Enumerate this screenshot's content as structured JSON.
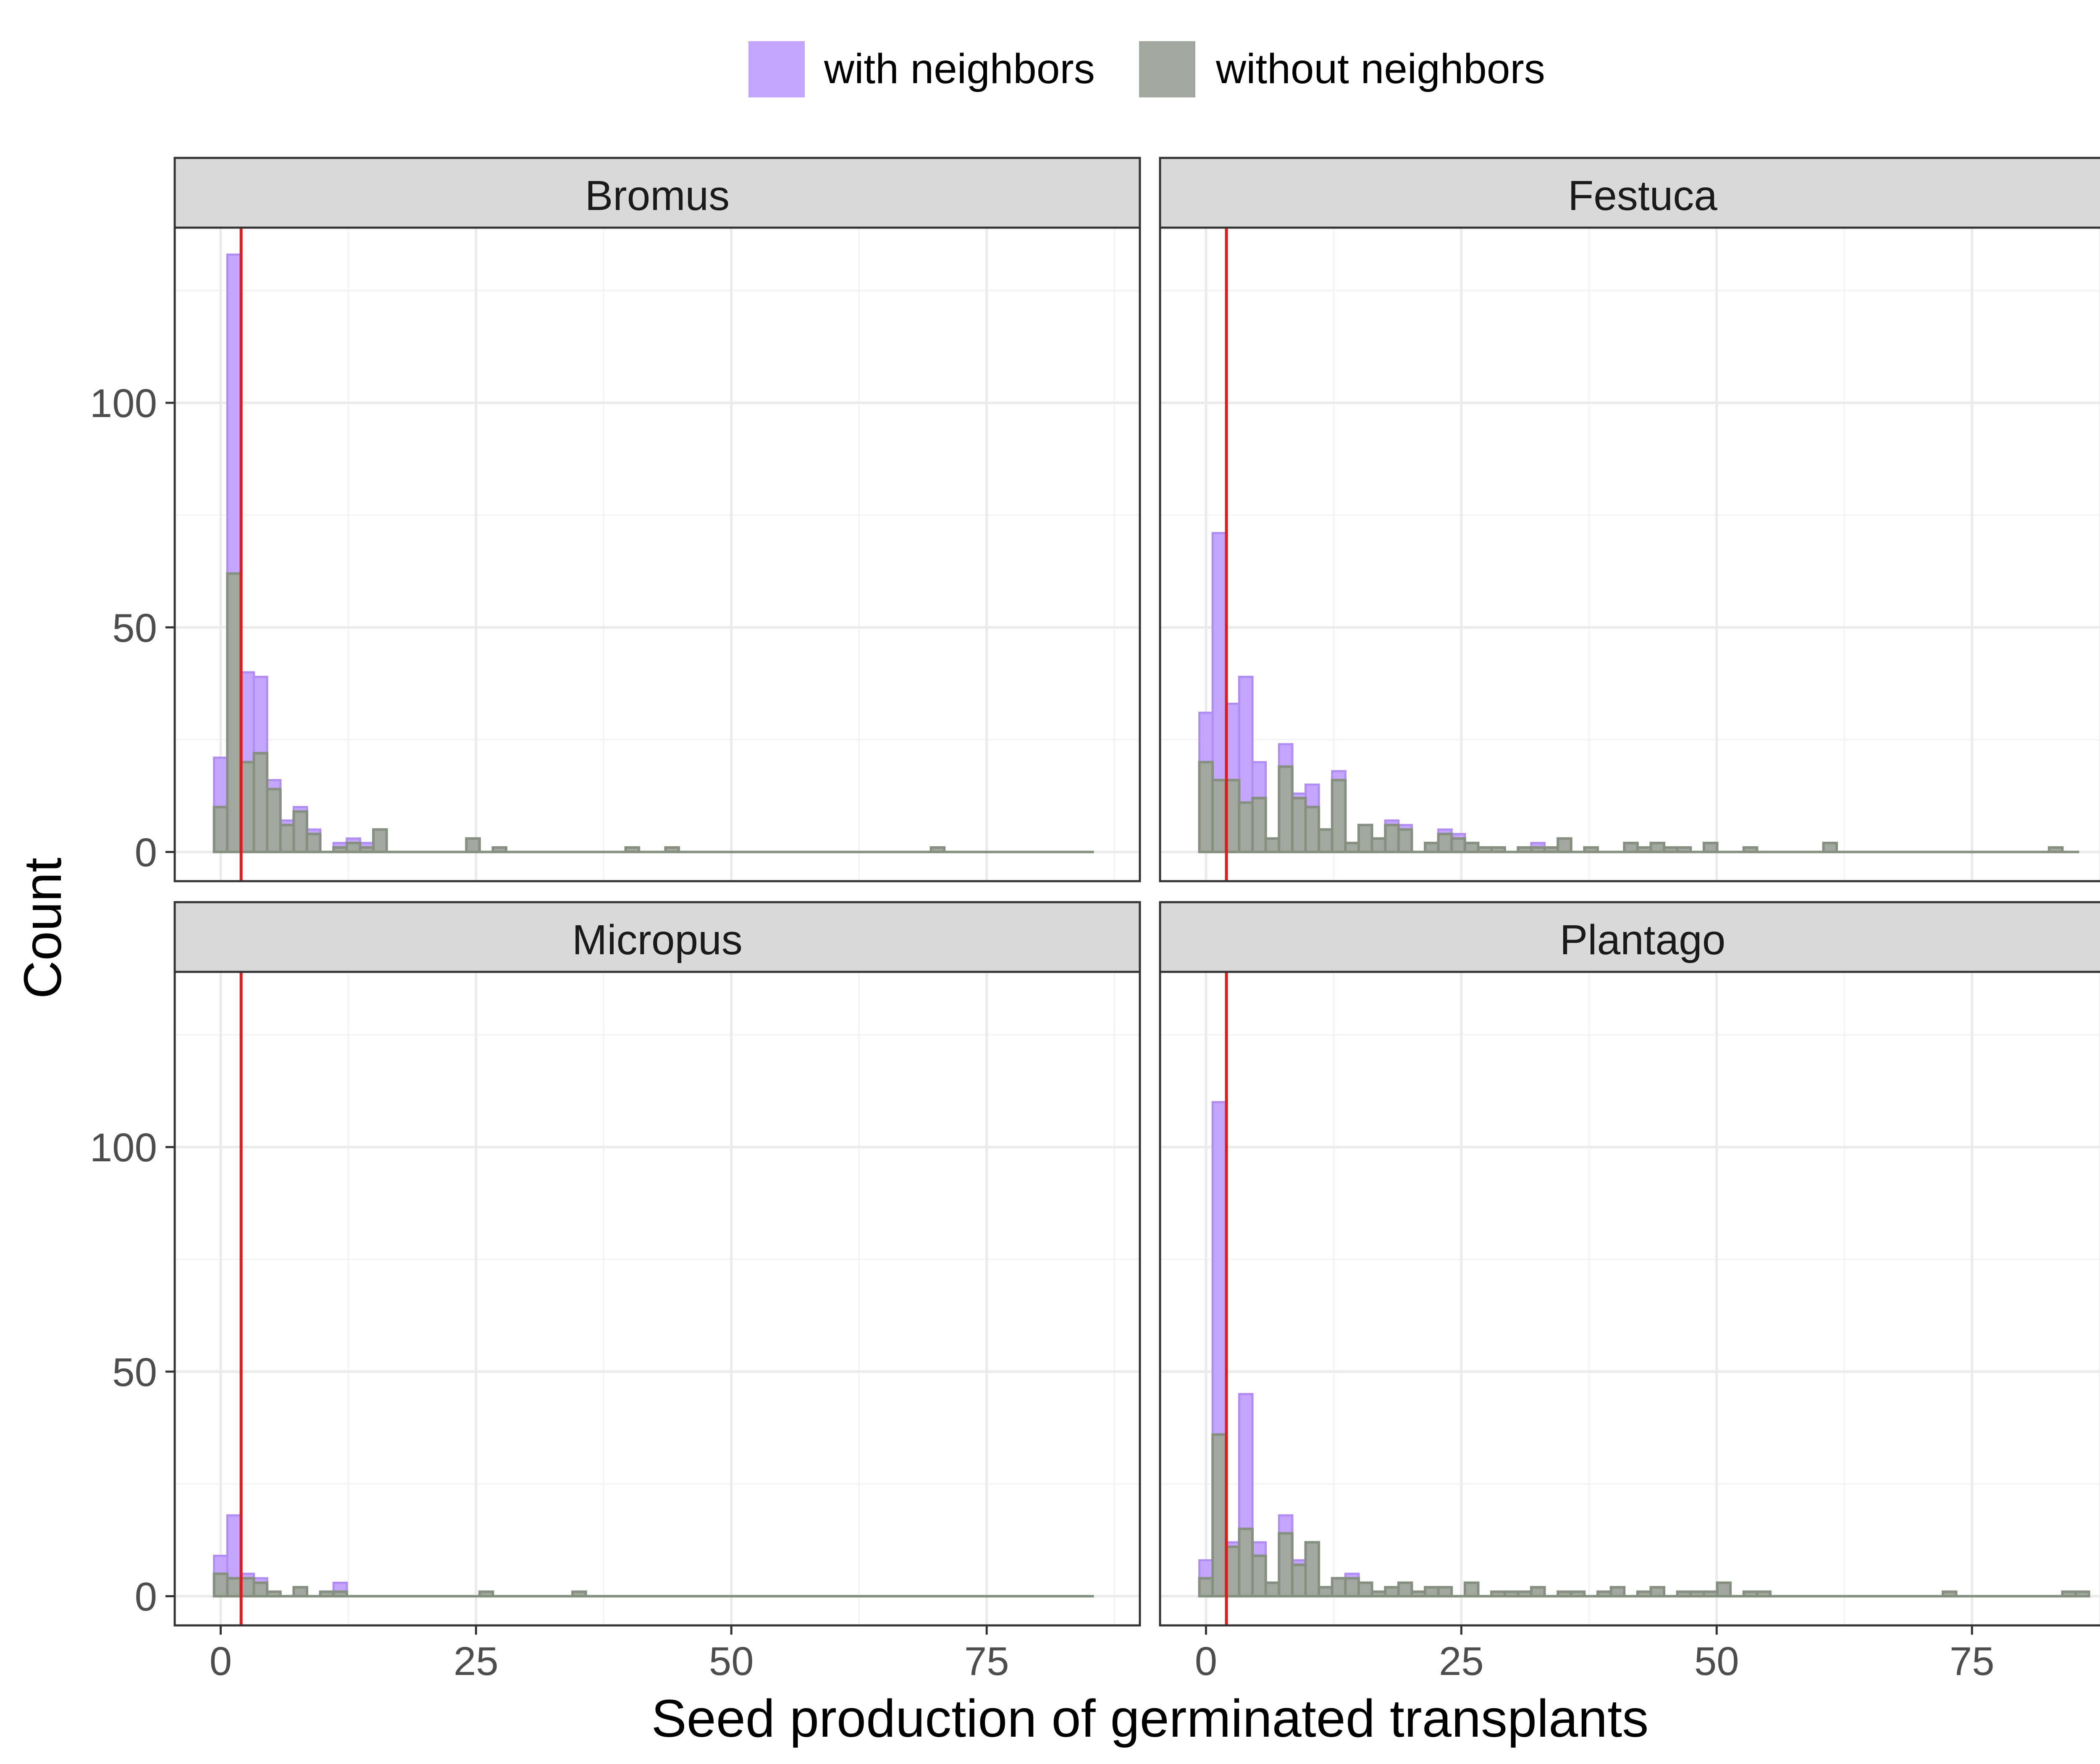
{
  "chart_data": {
    "type": "histogram",
    "facets": [
      "Bromus",
      "Festuca",
      "Micropus",
      "Plantago"
    ],
    "xlabel": "Seed production of germinated transplants",
    "ylabel": "Count",
    "xlim": [
      -4.5,
      90
    ],
    "ylim": [
      -6.5,
      139
    ],
    "x_ticks": [
      0,
      25,
      50,
      75
    ],
    "y_ticks": [
      0,
      50,
      100
    ],
    "bin_width": 1.3,
    "bin_start": -0.65,
    "x_max": 85.5,
    "reference_line_x": 2,
    "grid": true,
    "legend_position": "top",
    "series": [
      {
        "name": "with neighbors",
        "color": "#C4A6FF"
      },
      {
        "name": "without neighbors",
        "color": "#A2A79F"
      }
    ],
    "colors": {
      "reference_line": "#E31A1C",
      "bar_outline": "#869080",
      "strip_fill": "#D9D9D9",
      "grid": "#EBEBEB"
    },
    "panels": [
      {
        "facet": "Bromus",
        "with_neighbors": [
          [
            0,
            21
          ],
          [
            1,
            133
          ],
          [
            2,
            40
          ],
          [
            3,
            39
          ],
          [
            4,
            16
          ],
          [
            5,
            7
          ],
          [
            6,
            10
          ],
          [
            7,
            5
          ],
          [
            9,
            2
          ],
          [
            10,
            3
          ],
          [
            11,
            2
          ],
          [
            12,
            5
          ],
          [
            19,
            3
          ],
          [
            21,
            1
          ],
          [
            31,
            1
          ],
          [
            34,
            1
          ],
          [
            54,
            1
          ]
        ],
        "without_neighbors": [
          [
            0,
            10
          ],
          [
            1,
            62
          ],
          [
            2,
            20
          ],
          [
            3,
            22
          ],
          [
            4,
            14
          ],
          [
            5,
            6
          ],
          [
            6,
            9
          ],
          [
            7,
            4
          ],
          [
            9,
            1
          ],
          [
            10,
            2
          ],
          [
            11,
            1
          ],
          [
            12,
            5
          ],
          [
            19,
            3
          ],
          [
            21,
            1
          ],
          [
            31,
            1
          ],
          [
            34,
            1
          ],
          [
            54,
            1
          ]
        ]
      },
      {
        "facet": "Festuca",
        "with_neighbors": [
          [
            0,
            31
          ],
          [
            1,
            71
          ],
          [
            2,
            33
          ],
          [
            3,
            39
          ],
          [
            4,
            20
          ],
          [
            5,
            3
          ],
          [
            6,
            24
          ],
          [
            7,
            13
          ],
          [
            8,
            15
          ],
          [
            9,
            5
          ],
          [
            10,
            18
          ],
          [
            11,
            2
          ],
          [
            12,
            6
          ],
          [
            13,
            3
          ],
          [
            14,
            7
          ],
          [
            15,
            6
          ],
          [
            17,
            2
          ],
          [
            18,
            5
          ],
          [
            19,
            4
          ],
          [
            20,
            2
          ],
          [
            21,
            1
          ],
          [
            22,
            1
          ],
          [
            24,
            1
          ],
          [
            25,
            2
          ],
          [
            26,
            1
          ],
          [
            27,
            3
          ],
          [
            29,
            1
          ],
          [
            32,
            2
          ],
          [
            33,
            1
          ],
          [
            34,
            2
          ],
          [
            35,
            1
          ],
          [
            36,
            1
          ],
          [
            38,
            2
          ],
          [
            41,
            1
          ],
          [
            47,
            2
          ],
          [
            64,
            1
          ]
        ],
        "without_neighbors": [
          [
            0,
            20
          ],
          [
            1,
            16
          ],
          [
            2,
            16
          ],
          [
            3,
            11
          ],
          [
            4,
            12
          ],
          [
            5,
            3
          ],
          [
            6,
            19
          ],
          [
            7,
            12
          ],
          [
            8,
            10
          ],
          [
            9,
            5
          ],
          [
            10,
            16
          ],
          [
            11,
            2
          ],
          [
            12,
            6
          ],
          [
            13,
            3
          ],
          [
            14,
            6
          ],
          [
            15,
            5
          ],
          [
            17,
            2
          ],
          [
            18,
            4
          ],
          [
            19,
            3
          ],
          [
            20,
            2
          ],
          [
            21,
            1
          ],
          [
            22,
            1
          ],
          [
            24,
            1
          ],
          [
            25,
            1
          ],
          [
            26,
            1
          ],
          [
            27,
            3
          ],
          [
            29,
            1
          ],
          [
            32,
            2
          ],
          [
            33,
            1
          ],
          [
            34,
            2
          ],
          [
            35,
            1
          ],
          [
            36,
            1
          ],
          [
            38,
            2
          ],
          [
            41,
            1
          ],
          [
            47,
            2
          ],
          [
            64,
            1
          ]
        ]
      },
      {
        "facet": "Micropus",
        "with_neighbors": [
          [
            0,
            9
          ],
          [
            1,
            18
          ],
          [
            2,
            5
          ],
          [
            3,
            4
          ],
          [
            4,
            1
          ],
          [
            6,
            2
          ],
          [
            8,
            1
          ],
          [
            9,
            3
          ],
          [
            20,
            1
          ],
          [
            27,
            1
          ]
        ],
        "without_neighbors": [
          [
            0,
            5
          ],
          [
            1,
            4
          ],
          [
            2,
            4
          ],
          [
            3,
            3
          ],
          [
            4,
            1
          ],
          [
            6,
            2
          ],
          [
            8,
            1
          ],
          [
            9,
            1
          ],
          [
            20,
            1
          ],
          [
            27,
            1
          ]
        ]
      },
      {
        "facet": "Plantago",
        "with_neighbors": [
          [
            0,
            8
          ],
          [
            1,
            110
          ],
          [
            2,
            12
          ],
          [
            3,
            45
          ],
          [
            4,
            12
          ],
          [
            5,
            3
          ],
          [
            6,
            18
          ],
          [
            7,
            8
          ],
          [
            8,
            12
          ],
          [
            9,
            2
          ],
          [
            10,
            4
          ],
          [
            11,
            5
          ],
          [
            12,
            3
          ],
          [
            13,
            1
          ],
          [
            14,
            2
          ],
          [
            15,
            3
          ],
          [
            16,
            1
          ],
          [
            17,
            2
          ],
          [
            18,
            2
          ],
          [
            20,
            3
          ],
          [
            22,
            1
          ],
          [
            23,
            1
          ],
          [
            24,
            1
          ],
          [
            25,
            2
          ],
          [
            27,
            1
          ],
          [
            28,
            1
          ],
          [
            30,
            1
          ],
          [
            31,
            2
          ],
          [
            33,
            1
          ],
          [
            34,
            2
          ],
          [
            36,
            1
          ],
          [
            37,
            1
          ],
          [
            38,
            1
          ],
          [
            39,
            3
          ],
          [
            41,
            1
          ],
          [
            42,
            1
          ],
          [
            56,
            1
          ],
          [
            65,
            1
          ],
          [
            66,
            1
          ]
        ],
        "without_neighbors": [
          [
            0,
            4
          ],
          [
            1,
            36
          ],
          [
            2,
            11
          ],
          [
            3,
            15
          ],
          [
            4,
            9
          ],
          [
            5,
            3
          ],
          [
            6,
            14
          ],
          [
            7,
            7
          ],
          [
            8,
            12
          ],
          [
            9,
            2
          ],
          [
            10,
            4
          ],
          [
            11,
            4
          ],
          [
            12,
            3
          ],
          [
            13,
            1
          ],
          [
            14,
            2
          ],
          [
            15,
            3
          ],
          [
            16,
            1
          ],
          [
            17,
            2
          ],
          [
            18,
            2
          ],
          [
            20,
            3
          ],
          [
            22,
            1
          ],
          [
            23,
            1
          ],
          [
            24,
            1
          ],
          [
            25,
            2
          ],
          [
            27,
            1
          ],
          [
            28,
            1
          ],
          [
            30,
            1
          ],
          [
            31,
            2
          ],
          [
            33,
            1
          ],
          [
            34,
            2
          ],
          [
            36,
            1
          ],
          [
            37,
            1
          ],
          [
            38,
            1
          ],
          [
            39,
            3
          ],
          [
            41,
            1
          ],
          [
            42,
            1
          ],
          [
            56,
            1
          ],
          [
            65,
            1
          ],
          [
            66,
            1
          ]
        ]
      }
    ]
  }
}
